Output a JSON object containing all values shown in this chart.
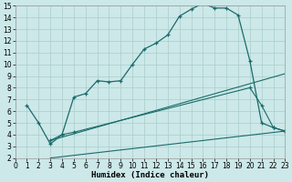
{
  "xlabel": "Humidex (Indice chaleur)",
  "bg_color": "#cce8e8",
  "grid_color": "#aacccc",
  "line_color": "#1a6b6b",
  "xlim": [
    0,
    23
  ],
  "ylim": [
    2,
    15
  ],
  "xticks": [
    0,
    1,
    2,
    3,
    4,
    5,
    6,
    7,
    8,
    9,
    10,
    11,
    12,
    13,
    14,
    15,
    16,
    17,
    18,
    19,
    20,
    21,
    22,
    23
  ],
  "yticks": [
    2,
    3,
    4,
    5,
    6,
    7,
    8,
    9,
    10,
    11,
    12,
    13,
    14,
    15
  ],
  "line1_x": [
    1,
    2,
    3,
    4,
    5,
    6,
    7,
    8,
    9,
    10,
    11,
    12,
    13,
    14,
    15,
    16,
    17,
    18,
    19,
    20,
    21,
    22,
    23
  ],
  "line1_y": [
    6.5,
    5.0,
    3.2,
    4.0,
    7.2,
    7.5,
    8.6,
    8.5,
    8.6,
    10.0,
    11.3,
    11.8,
    12.5,
    14.1,
    14.7,
    15.2,
    14.8,
    14.8,
    14.2,
    10.3,
    5.0,
    4.6,
    4.3
  ],
  "line2_x": [
    3,
    23
  ],
  "line2_y": [
    3.5,
    9.2
  ],
  "line3_x": [
    3,
    23
  ],
  "line3_y": [
    2.0,
    4.3
  ],
  "line4_x": [
    3,
    4,
    5,
    20,
    21,
    22,
    23
  ],
  "line4_y": [
    3.5,
    4.0,
    4.2,
    8.0,
    6.5,
    4.6,
    4.3
  ],
  "tick_fontsize": 5.5,
  "xlabel_fontsize": 6.5
}
